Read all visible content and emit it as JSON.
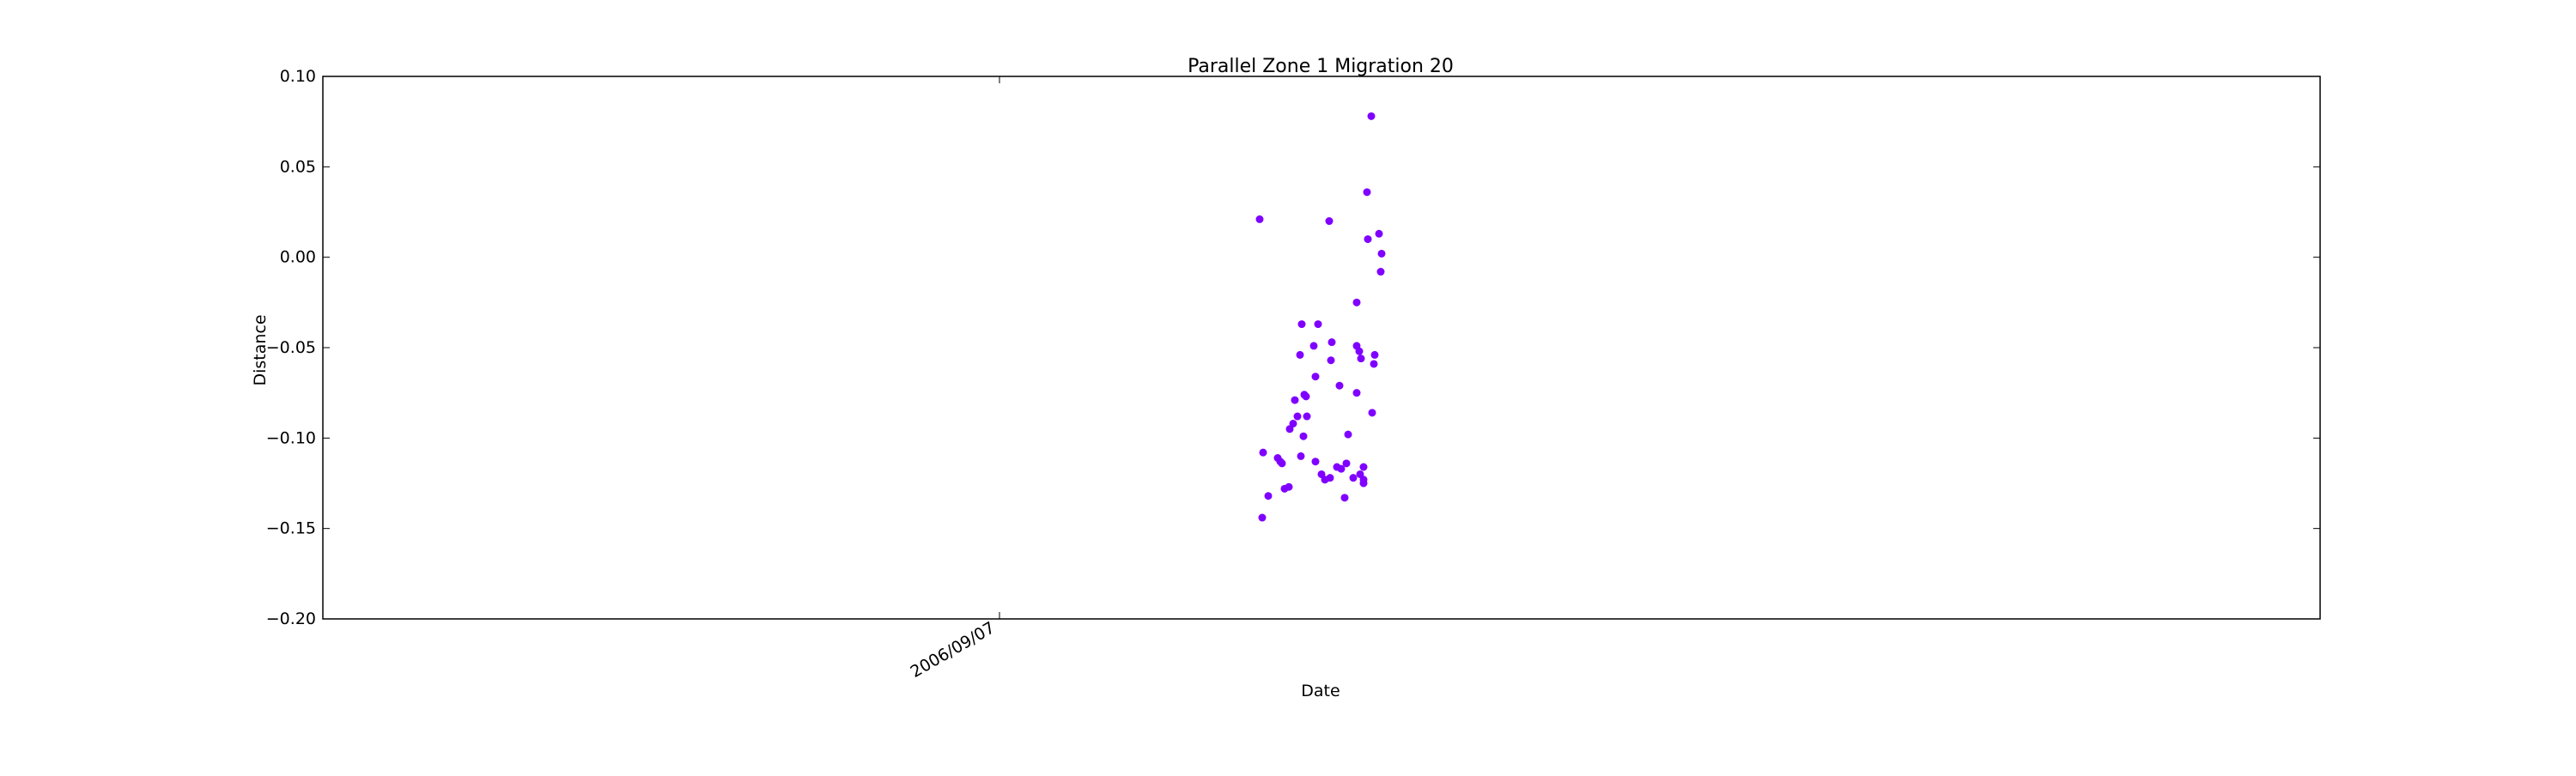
{
  "chart_data": {
    "type": "scatter",
    "title": "Parallel Zone 1 Migration 20",
    "xlabel": "Date",
    "ylabel": "Distance",
    "ylim": [
      -0.2,
      0.1
    ],
    "yticks": [
      "0.10",
      "0.05",
      "0.00",
      "−0.05",
      "−0.10",
      "−0.15",
      "−0.20"
    ],
    "ytick_values": [
      0.1,
      0.05,
      0.0,
      -0.05,
      -0.1,
      -0.15,
      -0.2
    ],
    "xticks": [
      "2006/09/07"
    ],
    "xtick_values": [
      "2006-09-07"
    ],
    "grid": false,
    "marker_color": "#8000ff",
    "points_y": [
      0.021,
      -0.108,
      -0.144,
      -0.132,
      -0.111,
      -0.113,
      -0.114,
      -0.128,
      -0.127,
      -0.095,
      -0.092,
      -0.079,
      -0.088,
      -0.054,
      -0.037,
      -0.099,
      -0.11,
      -0.077,
      -0.076,
      -0.088,
      -0.049,
      -0.066,
      -0.113,
      -0.037,
      -0.12,
      -0.123,
      -0.122,
      -0.047,
      -0.057,
      0.02,
      -0.116,
      -0.071,
      -0.117,
      -0.098,
      -0.114,
      -0.133,
      -0.122,
      -0.025,
      -0.049,
      -0.075,
      -0.052,
      -0.056,
      -0.12,
      -0.116,
      -0.123,
      -0.125,
      0.036,
      0.01,
      0.078,
      -0.086,
      -0.054,
      -0.059,
      0.013,
      0.002,
      -0.008
    ]
  }
}
